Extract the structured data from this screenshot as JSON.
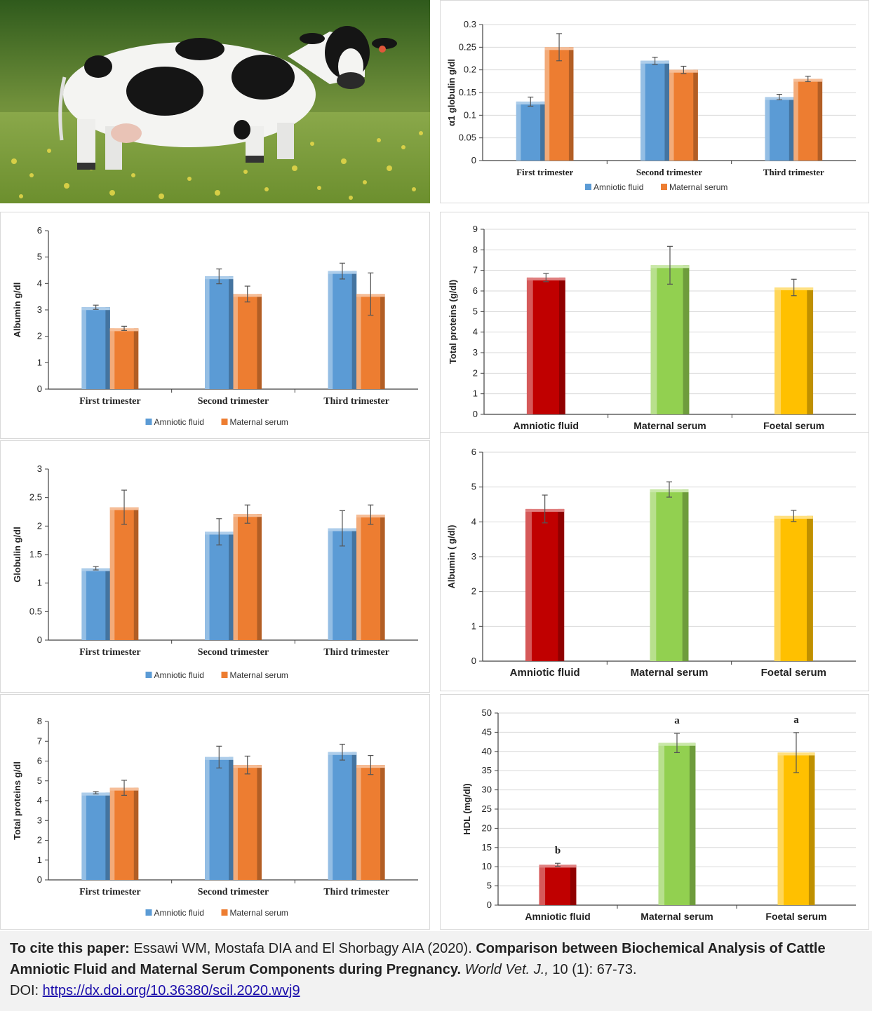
{
  "colors": {
    "amniotic_blue": "#5b9bd5",
    "maternal_orange": "#ed7d31",
    "red": "#c00000",
    "green": "#92d050",
    "yellow": "#ffc000",
    "grid": "#d9d9d9",
    "axis": "#404040"
  },
  "photo": {
    "description_icon": "cow-photo"
  },
  "chart_data": [
    {
      "id": "alpha1",
      "type": "bar",
      "ylabel": "α1 globulin g/dl",
      "ylim": [
        0,
        0.3
      ],
      "yticks": [
        "0",
        "0.05",
        "0.1",
        "0.15",
        "0.2",
        "0.25",
        "0.3"
      ],
      "categories": [
        "First trimester",
        "Second trimester",
        "Third trimester"
      ],
      "series": [
        {
          "name": "Amniotic fluid",
          "values": [
            0.13,
            0.22,
            0.14
          ],
          "errors": [
            0.01,
            0.008,
            0.006
          ]
        },
        {
          "name": "Maternal serum",
          "values": [
            0.25,
            0.2,
            0.18
          ],
          "errors": [
            0.03,
            0.008,
            0.006
          ]
        }
      ],
      "legend": "bottom",
      "grid": true
    },
    {
      "id": "albumin_tri",
      "type": "bar",
      "ylabel": "Albumin g/dl",
      "ylim": [
        0,
        6
      ],
      "yticks": [
        "0",
        "1",
        "2",
        "3",
        "4",
        "5",
        "6"
      ],
      "categories": [
        "First trimester",
        "Second trimester",
        "Third trimester"
      ],
      "series": [
        {
          "name": "Amniotic fluid",
          "values": [
            3.1,
            4.27,
            4.47
          ],
          "errors": [
            0.08,
            0.28,
            0.3
          ]
        },
        {
          "name": "Maternal serum",
          "values": [
            2.3,
            3.6,
            3.6
          ],
          "errors": [
            0.08,
            0.3,
            0.8
          ]
        }
      ],
      "legend": "bottom",
      "grid": false
    },
    {
      "id": "tp_groups",
      "type": "bar",
      "ylabel": "Total proteins (g/dl)",
      "ylim": [
        0,
        9
      ],
      "yticks": [
        "0",
        "1",
        "2",
        "3",
        "4",
        "5",
        "6",
        "7",
        "8",
        "9"
      ],
      "categories": [
        "Amniotic fluid",
        "Maternal serum",
        "Foetal serum"
      ],
      "values": [
        6.65,
        7.25,
        6.17
      ],
      "errors": [
        0.2,
        0.92,
        0.4
      ],
      "grid": true
    },
    {
      "id": "globulin_tri",
      "type": "bar",
      "ylabel": "Globulin g/dl",
      "ylim": [
        0,
        3
      ],
      "yticks": [
        "0",
        "0.5",
        "1",
        "1.5",
        "2",
        "2.5",
        "3"
      ],
      "categories": [
        "First trimester",
        "Second trimester",
        "Third trimester"
      ],
      "series": [
        {
          "name": "Amniotic fluid",
          "values": [
            1.26,
            1.9,
            1.96
          ],
          "errors": [
            0.03,
            0.23,
            0.31
          ]
        },
        {
          "name": "Maternal serum",
          "values": [
            2.33,
            2.21,
            2.2
          ],
          "errors": [
            0.3,
            0.16,
            0.17
          ]
        }
      ],
      "legend": "bottom",
      "grid": false
    },
    {
      "id": "albumin_groups",
      "type": "bar",
      "ylabel": "Albumin ( g/dl)",
      "ylim": [
        0,
        6
      ],
      "yticks": [
        "0",
        "1",
        "2",
        "3",
        "4",
        "5",
        "6"
      ],
      "categories": [
        "Amniotic fluid",
        "Maternal serum",
        "Foetal serum"
      ],
      "values": [
        4.37,
        4.93,
        4.17
      ],
      "errors": [
        0.4,
        0.22,
        0.16
      ],
      "grid": true
    },
    {
      "id": "tp_tri",
      "type": "bar",
      "ylabel": "Total proteins g/dl",
      "ylim": [
        0,
        8
      ],
      "yticks": [
        "0",
        "1",
        "2",
        "3",
        "4",
        "5",
        "6",
        "7",
        "8"
      ],
      "categories": [
        "First trimester",
        "Second trimester",
        "Third trimester"
      ],
      "series": [
        {
          "name": "Amniotic fluid",
          "values": [
            4.4,
            6.2,
            6.45
          ],
          "errors": [
            0.06,
            0.55,
            0.4
          ]
        },
        {
          "name": "Maternal serum",
          "values": [
            4.65,
            5.8,
            5.8
          ],
          "errors": [
            0.38,
            0.45,
            0.48
          ]
        }
      ],
      "legend": "bottom",
      "grid": false
    },
    {
      "id": "hdl",
      "type": "bar",
      "ylabel": "HDL (mg/dl)",
      "ylim": [
        0,
        50
      ],
      "yticks": [
        "0",
        "5",
        "10",
        "15",
        "20",
        "25",
        "30",
        "35",
        "40",
        "45",
        "50"
      ],
      "categories": [
        "Amniotic fluid",
        "Maternal serum",
        "Foetal serum"
      ],
      "values": [
        10.5,
        42.2,
        39.7
      ],
      "errors": [
        0.4,
        2.5,
        5.2
      ],
      "annotations": [
        "b",
        "a",
        "a"
      ],
      "grid": true
    }
  ],
  "citation": {
    "lead": "To cite this paper:",
    "authors": " Essawi WM, Mostafa DIA and El Shorbagy AIA (2020). ",
    "title": "Comparison between Biochemical Analysis of Cattle Amniotic Fluid and Maternal Serum Components during Pregnancy.",
    "journal": " World Vet. J.,",
    "volume": " 10 (1): 67-73.",
    "doi_label": "DOI: ",
    "doi_link": "https://dx.doi.org/10.36380/scil.2020.wvj9"
  }
}
